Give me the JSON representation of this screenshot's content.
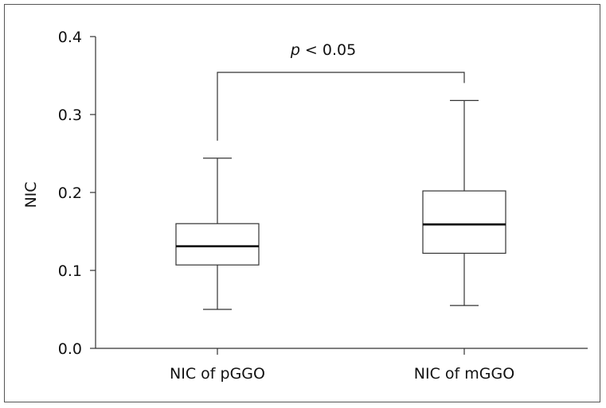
{
  "chart_data": {
    "type": "boxplot",
    "title": "",
    "xlabel": "",
    "ylabel": "NIC",
    "ylim": [
      0.0,
      0.4
    ],
    "yticks": [
      "0.0",
      "0.1",
      "0.2",
      "0.3",
      "0.4"
    ],
    "ytick_values": [
      0.0,
      0.1,
      0.2,
      0.3,
      0.4
    ],
    "categories": [
      "NIC of pGGO",
      "NIC of mGGO"
    ],
    "boxes": [
      {
        "category": "NIC of pGGO",
        "min": 0.05,
        "q1": 0.107,
        "median": 0.131,
        "q3": 0.16,
        "max": 0.244
      },
      {
        "category": "NIC of mGGO",
        "min": 0.055,
        "q1": 0.122,
        "median": 0.159,
        "q3": 0.202,
        "max": 0.318
      }
    ],
    "annotation": {
      "italic": "p",
      "rest": " < 0.05"
    },
    "grid": false,
    "legend": "none"
  }
}
